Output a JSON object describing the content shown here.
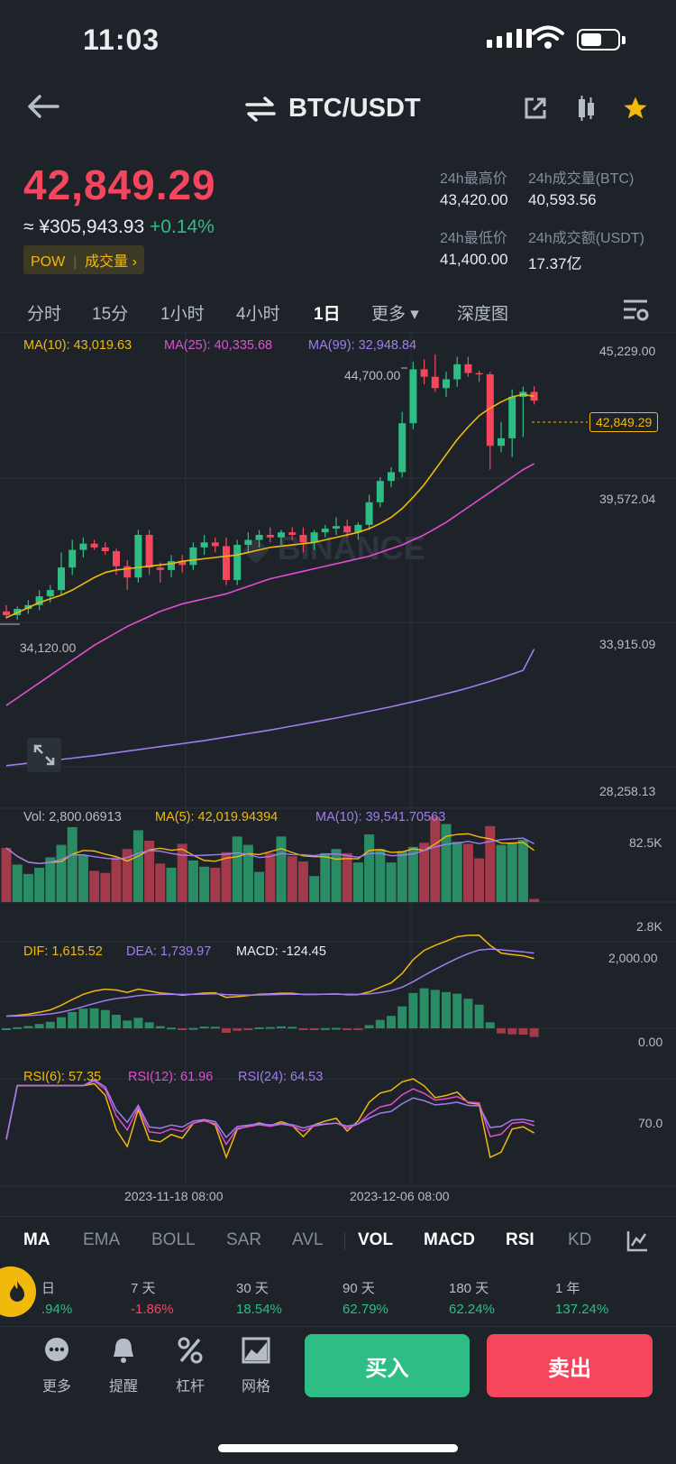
{
  "status_bar": {
    "time": "11:03"
  },
  "header": {
    "pair": "BTC/USDT"
  },
  "ticker": {
    "price": "42,849.29",
    "cny": "≈ ¥305,943.93",
    "change": "+0.14%",
    "tags": {
      "pow": "POW",
      "volume_link": "成交量 ›"
    },
    "stats": [
      {
        "label": "24h最高价",
        "value": "43,420.00"
      },
      {
        "label": "24h成交量(BTC)",
        "value": "40,593.56"
      },
      {
        "label": "24h最低价",
        "value": "41,400.00"
      },
      {
        "label": "24h成交额(USDT)",
        "value": "17.37亿"
      }
    ]
  },
  "timeframes": [
    "分时",
    "15分",
    "1小时",
    "4小时",
    "1日",
    "更多 ▾",
    "深度图"
  ],
  "active_timeframe": "1日",
  "main_chart": {
    "ma_legend": [
      {
        "label": "MA(10): 43,019.63",
        "color": "#f0b90b"
      },
      {
        "label": "MA(25): 40,335.68",
        "color": "#e14ed1"
      },
      {
        "label": "MA(99): 32,948.84",
        "color": "#a07cf0"
      }
    ],
    "y_ticks": [
      "45,229.00",
      "39,572.04",
      "33,915.09",
      "28,258.13"
    ],
    "current_price_tag": "42,849.29",
    "high_marker": "44,700.00",
    "low_marker": "34,120.00"
  },
  "volume_panel": {
    "legend": [
      {
        "label": "Vol: 2,800.06913",
        "color": "#b7bdc6"
      },
      {
        "label": "MA(5): 42,019.94394",
        "color": "#f0b90b"
      },
      {
        "label": "MA(10): 39,541.70563",
        "color": "#a07cf0"
      }
    ],
    "y_ticks": [
      "82.5K",
      "2.8K"
    ]
  },
  "macd_panel": {
    "legend": [
      {
        "label": "DIF: 1,615.52",
        "color": "#f0b90b"
      },
      {
        "label": "DEA: 1,739.97",
        "color": "#a07cf0"
      },
      {
        "label": "MACD: -124.45",
        "color": "#eaecef"
      }
    ],
    "y_ticks": [
      "2,000.00",
      "0.00"
    ]
  },
  "rsi_panel": {
    "legend": [
      {
        "label": "RSI(6): 57.35",
        "color": "#f0b90b"
      },
      {
        "label": "RSI(12): 61.96",
        "color": "#e14ed1"
      },
      {
        "label": "RSI(24): 64.53",
        "color": "#a07cf0"
      }
    ],
    "y_ticks": [
      "70.0"
    ],
    "x_labels": [
      "2023-11-18 08:00",
      "2023-12-06 08:00"
    ]
  },
  "indicator_tabs": [
    "MA",
    "EMA",
    "BOLL",
    "SAR",
    "AVL",
    "VOL",
    "MACD",
    "RSI",
    "KD"
  ],
  "performance": [
    {
      "label": "日",
      "value": ".94%"
    },
    {
      "label": "7 天",
      "value": "-1.86%"
    },
    {
      "label": "30 天",
      "value": "18.54%"
    },
    {
      "label": "90 天",
      "value": "62.79%"
    },
    {
      "label": "180 天",
      "value": "62.24%"
    },
    {
      "label": "1 年",
      "value": "137.24%"
    }
  ],
  "actions": [
    "更多",
    "提醒",
    "杠杆",
    "网格"
  ],
  "buy_label": "买入",
  "sell_label": "卖出",
  "colors": {
    "up": "#2ebd85",
    "down": "#f6465d",
    "accent": "#f0b90b",
    "bg": "#1e2329"
  },
  "chart_data": {
    "type": "candlestick",
    "x_labels": [
      "2023-11-18 08:00",
      "2023-12-06 08:00"
    ],
    "ylim": [
      28258.13,
      45229.0
    ],
    "candles": [
      {
        "o": 34450,
        "h": 34700,
        "l": 34150,
        "c": 34300
      },
      {
        "o": 34300,
        "h": 34650,
        "l": 34120,
        "c": 34550
      },
      {
        "o": 34550,
        "h": 34900,
        "l": 34350,
        "c": 34700
      },
      {
        "o": 34700,
        "h": 35300,
        "l": 34500,
        "c": 35050
      },
      {
        "o": 35050,
        "h": 35500,
        "l": 34800,
        "c": 35300
      },
      {
        "o": 35300,
        "h": 36800,
        "l": 35100,
        "c": 36200
      },
      {
        "o": 36200,
        "h": 37300,
        "l": 35900,
        "c": 36900
      },
      {
        "o": 36900,
        "h": 37400,
        "l": 36600,
        "c": 37150
      },
      {
        "o": 37150,
        "h": 37300,
        "l": 36900,
        "c": 37000
      },
      {
        "o": 37000,
        "h": 37200,
        "l": 36700,
        "c": 36850
      },
      {
        "o": 36850,
        "h": 36950,
        "l": 35900,
        "c": 36250
      },
      {
        "o": 36250,
        "h": 36500,
        "l": 35300,
        "c": 35800
      },
      {
        "o": 35800,
        "h": 37700,
        "l": 35600,
        "c": 37500
      },
      {
        "o": 37500,
        "h": 37700,
        "l": 35900,
        "c": 36200
      },
      {
        "o": 36200,
        "h": 36400,
        "l": 35600,
        "c": 36100
      },
      {
        "o": 36100,
        "h": 36700,
        "l": 35800,
        "c": 36450
      },
      {
        "o": 36450,
        "h": 36700,
        "l": 36000,
        "c": 36300
      },
      {
        "o": 36300,
        "h": 37200,
        "l": 36100,
        "c": 37000
      },
      {
        "o": 37000,
        "h": 37500,
        "l": 36700,
        "c": 37200
      },
      {
        "o": 37200,
        "h": 37400,
        "l": 36800,
        "c": 37050
      },
      {
        "o": 37050,
        "h": 37400,
        "l": 35500,
        "c": 35700
      },
      {
        "o": 35700,
        "h": 37300,
        "l": 35500,
        "c": 37100
      },
      {
        "o": 37100,
        "h": 37600,
        "l": 36800,
        "c": 37300
      },
      {
        "o": 37300,
        "h": 37700,
        "l": 37000,
        "c": 37500
      },
      {
        "o": 37500,
        "h": 37800,
        "l": 37200,
        "c": 37400
      },
      {
        "o": 37400,
        "h": 37700,
        "l": 37100,
        "c": 37600
      },
      {
        "o": 37600,
        "h": 37800,
        "l": 37300,
        "c": 37500
      },
      {
        "o": 37500,
        "h": 37800,
        "l": 36800,
        "c": 37200
      },
      {
        "o": 37200,
        "h": 37700,
        "l": 36900,
        "c": 37600
      },
      {
        "o": 37600,
        "h": 37900,
        "l": 37400,
        "c": 37750
      },
      {
        "o": 37750,
        "h": 38200,
        "l": 37500,
        "c": 37850
      },
      {
        "o": 37850,
        "h": 38100,
        "l": 37400,
        "c": 37600
      },
      {
        "o": 37600,
        "h": 38000,
        "l": 37300,
        "c": 37900
      },
      {
        "o": 37900,
        "h": 39100,
        "l": 37700,
        "c": 38800
      },
      {
        "o": 38800,
        "h": 39800,
        "l": 38600,
        "c": 39650
      },
      {
        "o": 39650,
        "h": 40200,
        "l": 39400,
        "c": 40000
      },
      {
        "o": 40000,
        "h": 42400,
        "l": 39800,
        "c": 41950
      },
      {
        "o": 41950,
        "h": 44400,
        "l": 41700,
        "c": 44100
      },
      {
        "o": 44100,
        "h": 44500,
        "l": 43500,
        "c": 43800
      },
      {
        "o": 43800,
        "h": 44700,
        "l": 43200,
        "c": 43350
      },
      {
        "o": 43350,
        "h": 44000,
        "l": 43000,
        "c": 43700
      },
      {
        "o": 43700,
        "h": 44600,
        "l": 43400,
        "c": 44300
      },
      {
        "o": 44300,
        "h": 44600,
        "l": 43800,
        "c": 43950
      },
      {
        "o": 43950,
        "h": 44050,
        "l": 43600,
        "c": 43900
      },
      {
        "o": 43900,
        "h": 44000,
        "l": 40100,
        "c": 41050
      },
      {
        "o": 41050,
        "h": 42000,
        "l": 40800,
        "c": 41350
      },
      {
        "o": 41350,
        "h": 43300,
        "l": 40600,
        "c": 43000
      },
      {
        "o": 43000,
        "h": 43400,
        "l": 41400,
        "c": 43200
      },
      {
        "o": 43200,
        "h": 43420,
        "l": 42700,
        "c": 42849.29
      }
    ],
    "ma10": [
      34200,
      34400,
      34600,
      34800,
      34950,
      35100,
      35300,
      35550,
      35800,
      36000,
      36100,
      36150,
      36200,
      36250,
      36300,
      36350,
      36450,
      36500,
      36550,
      36600,
      36650,
      36700,
      36800,
      36900,
      37000,
      37050,
      37100,
      37150,
      37200,
      37300,
      37400,
      37500,
      37600,
      37750,
      37950,
      38200,
      38550,
      39000,
      39500,
      40100,
      40700,
      41300,
      41800,
      42250,
      42550,
      42800,
      43000,
      43100,
      43019.63
    ],
    "ma25": [
      30700,
      31000,
      31300,
      31600,
      31900,
      32200,
      32500,
      32800,
      33100,
      33350,
      33600,
      33850,
      34050,
      34250,
      34450,
      34600,
      34750,
      34850,
      34950,
      35050,
      35150,
      35300,
      35450,
      35600,
      35750,
      35850,
      35950,
      36050,
      36150,
      36250,
      36350,
      36450,
      36550,
      36650,
      36800,
      36950,
      37100,
      37300,
      37500,
      37750,
      38000,
      38300,
      38600,
      38900,
      39200,
      39500,
      39800,
      40100,
      40335.68
    ],
    "ma99": [
      28300,
      28350,
      28400,
      28450,
      28500,
      28550,
      28600,
      28650,
      28700,
      28760,
      28820,
      28880,
      28940,
      29000,
      29060,
      29120,
      29180,
      29240,
      29300,
      29370,
      29440,
      29510,
      29580,
      29650,
      29720,
      29800,
      29880,
      29960,
      30040,
      30120,
      30200,
      30290,
      30380,
      30470,
      30560,
      30650,
      30750,
      30850,
      30950,
      31060,
      31170,
      31280,
      31400,
      31530,
      31660,
      31800,
      31950,
      32100,
      32948.84
    ],
    "volume": [
      52,
      36,
      27,
      33,
      43,
      55,
      72,
      45,
      30,
      28,
      43,
      51,
      69,
      59,
      37,
      33,
      56,
      40,
      34,
      33,
      48,
      63,
      55,
      29,
      47,
      63,
      44,
      39,
      25,
      47,
      51,
      47,
      38,
      65,
      51,
      38,
      49,
      53,
      57,
      82,
      75,
      58,
      56,
      42,
      73,
      55,
      57,
      60,
      3
    ]
  }
}
